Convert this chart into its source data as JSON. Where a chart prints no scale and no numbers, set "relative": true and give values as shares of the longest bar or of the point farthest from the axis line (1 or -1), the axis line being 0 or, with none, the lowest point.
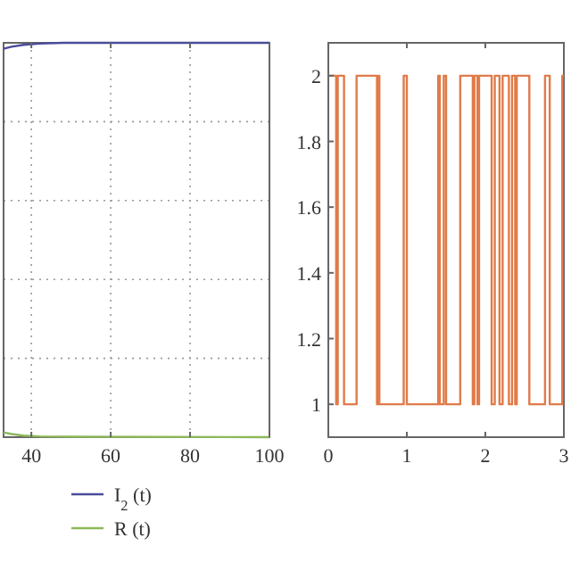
{
  "chart_data": [
    {
      "type": "line",
      "xlim": [
        33,
        100
      ],
      "xticks": [
        40,
        60,
        80,
        100
      ],
      "relative": true,
      "grid": true,
      "legend": "bottom",
      "series": [
        {
          "name": "I$_{2}$ (t)",
          "color": "#4b4b9a",
          "x": [
            33,
            35,
            38,
            42,
            48,
            60,
            100
          ],
          "values": [
            0.985,
            0.99,
            0.995,
            0.998,
            1,
            1,
            1
          ]
        },
        {
          "name": "R (t)",
          "color": "#8db85a",
          "x": [
            33,
            35,
            38,
            42,
            50,
            100
          ],
          "values": [
            0.012,
            0.008,
            0.004,
            0.002,
            0.001,
            0
          ]
        }
      ]
    },
    {
      "type": "step",
      "xlim": [
        0,
        3
      ],
      "xticks": [
        0,
        1,
        2,
        3
      ],
      "ylim": [
        0.9,
        2.1
      ],
      "yticks": [
        1,
        1.2,
        1.4,
        1.6,
        1.8,
        2
      ],
      "grid": false,
      "series": [
        {
          "color": "#e07b4a",
          "x": [
            0,
            0.1,
            0.12,
            0.2,
            0.36,
            0.62,
            0.64,
            0.65,
            0.96,
            1.0,
            1.4,
            1.42,
            1.47,
            1.5,
            1.68,
            1.84,
            1.86,
            1.9,
            1.92,
            2.08,
            2.12,
            2.18,
            2.22,
            2.3,
            2.34,
            2.38,
            2.4,
            2.56,
            2.76,
            2.82,
            2.98,
            3.0
          ],
          "values": [
            2,
            1,
            2,
            1,
            2,
            1,
            2,
            1,
            2,
            1,
            2,
            1,
            2,
            1,
            2,
            1,
            2,
            1,
            2,
            1,
            2,
            1,
            2,
            1,
            2,
            1,
            2,
            1,
            2,
            1,
            2,
            2
          ]
        }
      ]
    }
  ]
}
